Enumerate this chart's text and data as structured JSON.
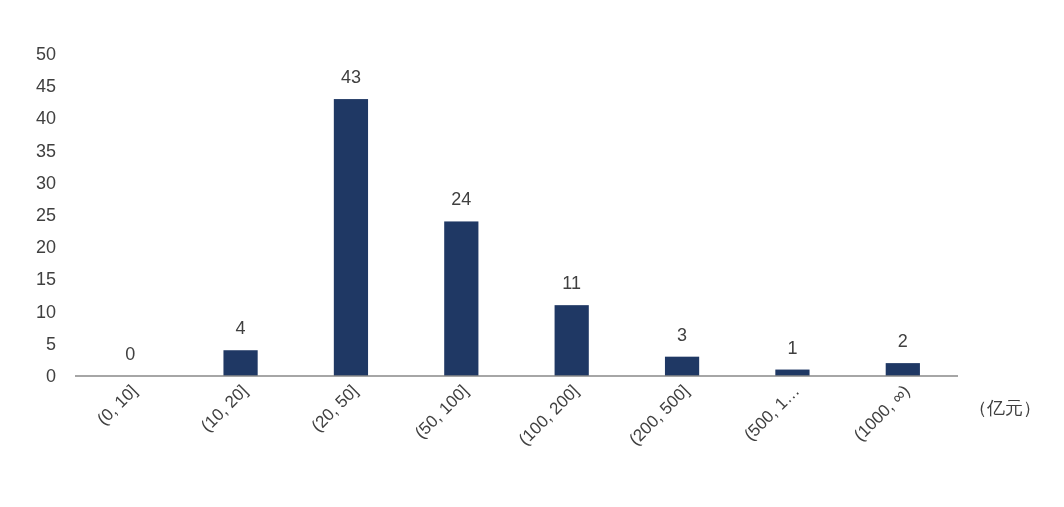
{
  "chart_data": {
    "type": "bar",
    "xlabel": "（亿元）",
    "categories": [
      "(0, 10]",
      "(10, 20]",
      "(20, 50]",
      "(50, 100]",
      "(100, 200]",
      "(200, 500]",
      "(500, 1…",
      "(1000, ∞)"
    ],
    "values": [
      0,
      4,
      43,
      24,
      11,
      3,
      1,
      2
    ],
    "color": "#1f3864",
    "ylim": [
      0,
      50
    ],
    "yticks": [
      0,
      5,
      10,
      15,
      20,
      25,
      30,
      35,
      40,
      45,
      50
    ],
    "data_labels": true,
    "grid": false
  }
}
